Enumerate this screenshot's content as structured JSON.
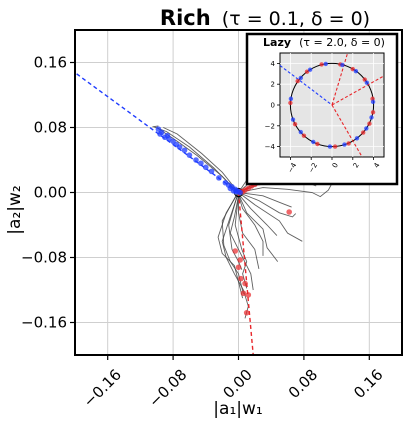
{
  "chart_data": [
    {
      "type": "scatter",
      "title_bold": "Rich",
      "title_params": "(τ = 0.1, δ = 0)",
      "xlabel": "|a₁|w₁",
      "ylabel": "|a₂|w₂",
      "xlim": [
        -0.2,
        0.2
      ],
      "ylim": [
        -0.2,
        0.2
      ],
      "xticks": [
        -0.16,
        -0.08,
        0.0,
        0.08,
        0.16
      ],
      "xtick_labels": [
        "−0.16",
        "−0.08",
        "0.00",
        "0.08",
        "0.16"
      ],
      "yticks": [
        0.16,
        0.08,
        0.0,
        -0.08,
        -0.16
      ],
      "ytick_labels": [
        "0.16",
        "0.08",
        "0.00",
        "−0.08",
        "−0.16"
      ],
      "grid": true,
      "colors": {
        "blue": "#1f3cff",
        "red": "#e8262a",
        "trajectory": "#444444"
      },
      "circle_radius": 0.005,
      "blue_points": [
        [
          -0.098,
          0.078
        ],
        [
          -0.094,
          0.074
        ],
        [
          -0.096,
          0.072
        ],
        [
          -0.09,
          0.068
        ],
        [
          -0.087,
          0.07
        ],
        [
          -0.085,
          0.066
        ],
        [
          -0.08,
          0.063
        ],
        [
          -0.076,
          0.059
        ],
        [
          -0.072,
          0.056
        ],
        [
          -0.066,
          0.052
        ],
        [
          -0.06,
          0.046
        ],
        [
          -0.052,
          0.04
        ],
        [
          -0.046,
          0.036
        ],
        [
          -0.04,
          0.031
        ],
        [
          -0.033,
          0.026
        ],
        [
          -0.024,
          0.018
        ],
        [
          -0.016,
          0.012
        ],
        [
          -0.012,
          0.009
        ],
        [
          -0.01,
          0.005
        ],
        [
          -0.008,
          0.007
        ],
        [
          -0.006,
          0.002
        ],
        [
          -0.004,
          0.004
        ],
        [
          -0.003,
          0.001
        ],
        [
          -0.002,
          0.002
        ],
        [
          0.0,
          0.001
        ],
        [
          0.002,
          0.0
        ]
      ],
      "red_points": [
        [
          0.002,
          0.001
        ],
        [
          0.005,
          0.001
        ],
        [
          0.008,
          0.003
        ],
        [
          0.012,
          0.005
        ],
        [
          0.016,
          0.008
        ],
        [
          0.02,
          0.01
        ],
        [
          0.025,
          0.012
        ],
        [
          0.03,
          0.015
        ],
        [
          0.034,
          0.017
        ],
        [
          0.04,
          0.02
        ],
        [
          0.044,
          0.022
        ],
        [
          0.05,
          0.024
        ],
        [
          0.062,
          0.026
        ],
        [
          0.076,
          0.026
        ],
        [
          0.062,
          -0.024
        ],
        [
          -0.004,
          -0.072
        ],
        [
          0.0,
          -0.092
        ],
        [
          0.003,
          -0.106
        ],
        [
          0.006,
          -0.124
        ],
        [
          0.01,
          -0.148
        ],
        [
          0.012,
          -0.126
        ],
        [
          0.008,
          -0.112
        ],
        [
          0.002,
          -0.083
        ]
      ],
      "blue_line": [
        [
          -0.198,
          0.146
        ],
        [
          0.0,
          0.0
        ]
      ],
      "red_lines": [
        [
          [
            0.0,
            0.0
          ],
          [
            0.06,
            0.03
          ],
          [
            0.12,
            0.062
          ]
        ],
        [
          [
            0.0,
            0.0
          ],
          [
            0.018,
            -0.2
          ]
        ]
      ],
      "trajectories": [
        [
          [
            -0.001,
            0.0
          ],
          [
            -0.02,
            0.02
          ],
          [
            -0.05,
            0.045
          ],
          [
            -0.075,
            0.063
          ],
          [
            -0.1,
            0.08
          ]
        ],
        [
          [
            0.0,
            -0.001
          ],
          [
            -0.03,
            0.03
          ],
          [
            -0.06,
            0.056
          ],
          [
            -0.088,
            0.075
          ],
          [
            -0.104,
            0.081
          ],
          [
            -0.098,
            0.082
          ]
        ],
        [
          [
            0.0,
            0.0
          ],
          [
            -0.02,
            0.025
          ],
          [
            -0.045,
            0.048
          ],
          [
            -0.075,
            0.072
          ],
          [
            -0.092,
            0.08
          ]
        ],
        [
          [
            0.0,
            0.0
          ],
          [
            0.02,
            0.03
          ],
          [
            0.035,
            0.045
          ],
          [
            0.055,
            0.052
          ],
          [
            0.07,
            0.048
          ],
          [
            0.095,
            0.043
          ]
        ],
        [
          [
            0.0,
            0.0
          ],
          [
            0.02,
            0.018
          ],
          [
            0.04,
            0.038
          ],
          [
            0.06,
            0.046
          ],
          [
            0.075,
            0.04
          ],
          [
            0.1,
            0.037
          ]
        ],
        [
          [
            0.0,
            0.0
          ],
          [
            0.03,
            0.016
          ],
          [
            0.05,
            0.03
          ],
          [
            0.075,
            0.03
          ],
          [
            0.1,
            0.028
          ],
          [
            0.12,
            0.028
          ]
        ],
        [
          [
            0.0,
            0.0
          ],
          [
            0.03,
            0.012
          ],
          [
            0.06,
            0.016
          ],
          [
            0.085,
            0.012
          ],
          [
            0.095,
            0.008
          ]
        ],
        [
          [
            0.0,
            0.0
          ],
          [
            0.03,
            0.006
          ],
          [
            0.06,
            0.004
          ],
          [
            0.09,
            0.0
          ],
          [
            0.1,
            -0.005
          ],
          [
            0.11,
            0.003
          ],
          [
            0.12,
            0.022
          ]
        ],
        [
          [
            0.0,
            0.0
          ],
          [
            0.03,
            -0.004
          ],
          [
            0.055,
            -0.014
          ],
          [
            0.065,
            -0.018
          ]
        ],
        [
          [
            0.0,
            0.0
          ],
          [
            0.025,
            -0.01
          ],
          [
            0.05,
            -0.025
          ],
          [
            0.066,
            -0.03
          ],
          [
            0.07,
            -0.026
          ]
        ],
        [
          [
            0.0,
            0.0
          ],
          [
            0.02,
            -0.015
          ],
          [
            0.05,
            -0.035
          ],
          [
            0.06,
            -0.05
          ],
          [
            0.078,
            -0.06
          ]
        ],
        [
          [
            0.0,
            -0.002
          ],
          [
            0.015,
            -0.02
          ],
          [
            0.035,
            -0.04
          ],
          [
            0.047,
            -0.053
          ]
        ],
        [
          [
            0.0,
            -0.002
          ],
          [
            0.01,
            -0.025
          ],
          [
            0.03,
            -0.045
          ],
          [
            0.035,
            -0.068
          ],
          [
            0.048,
            -0.085
          ]
        ],
        [
          [
            0.0,
            -0.003
          ],
          [
            0.005,
            -0.02
          ],
          [
            0.02,
            -0.04
          ],
          [
            0.03,
            -0.06
          ],
          [
            0.03,
            -0.078
          ]
        ],
        [
          [
            0.0,
            -0.004
          ],
          [
            0.0,
            -0.025
          ],
          [
            0.005,
            -0.05
          ],
          [
            0.02,
            -0.07
          ],
          [
            0.025,
            -0.094
          ]
        ],
        [
          [
            0.0,
            -0.004
          ],
          [
            -0.005,
            -0.03
          ],
          [
            -0.01,
            -0.05
          ],
          [
            0.0,
            -0.07
          ],
          [
            0.015,
            -0.1
          ],
          [
            0.018,
            -0.12
          ]
        ],
        [
          [
            -0.001,
            -0.003
          ],
          [
            -0.01,
            -0.03
          ],
          [
            -0.02,
            -0.06
          ],
          [
            -0.015,
            -0.08
          ],
          [
            -0.005,
            -0.1
          ],
          [
            0.006,
            -0.12
          ],
          [
            0.012,
            -0.14
          ],
          [
            0.008,
            -0.155
          ]
        ],
        [
          [
            -0.002,
            -0.003
          ],
          [
            -0.015,
            -0.025
          ],
          [
            -0.025,
            -0.055
          ],
          [
            -0.02,
            -0.075
          ],
          [
            -0.005,
            -0.09
          ],
          [
            0.0,
            -0.11
          ],
          [
            0.005,
            -0.13
          ]
        ],
        [
          [
            -0.002,
            -0.002
          ],
          [
            -0.02,
            -0.035
          ],
          [
            -0.018,
            -0.065
          ],
          [
            -0.01,
            -0.085
          ],
          [
            0.0,
            -0.1
          ],
          [
            0.006,
            -0.125
          ]
        ],
        [
          [
            -0.001,
            -0.002
          ],
          [
            -0.012,
            -0.04
          ],
          [
            -0.008,
            -0.07
          ],
          [
            0.0,
            -0.085
          ],
          [
            0.004,
            -0.095
          ]
        ],
        [
          [
            0.0,
            -0.003
          ],
          [
            -0.004,
            -0.04
          ],
          [
            0.004,
            -0.07
          ],
          [
            0.01,
            -0.085
          ],
          [
            0.005,
            -0.1
          ],
          [
            0.01,
            -0.118
          ]
        ]
      ]
    },
    {
      "type": "scatter",
      "title_bold": "Lazy",
      "title_params": "(τ = 2.0, δ = 0)",
      "xlim": [
        -5,
        5
      ],
      "ylim": [
        -5,
        5
      ],
      "xticks": [
        -4,
        -2,
        0,
        2,
        4
      ],
      "yticks": [
        4,
        2,
        0,
        -2,
        -4
      ],
      "ytick_labels": [
        "4",
        "2",
        "0",
        "−2",
        "−4"
      ],
      "xtick_labels": [
        "−4",
        "−2",
        "0",
        "2",
        "4"
      ],
      "circle_radius": 4.0,
      "background": "#e5e5e5",
      "blue_line": [
        [
          -5,
          3.8
        ],
        [
          0,
          0
        ]
      ],
      "red_lines": [
        [
          [
            0,
            0
          ],
          [
            5,
            2.8
          ]
        ],
        [
          [
            0,
            0
          ],
          [
            2.9,
            -5
          ]
        ],
        [
          [
            0,
            0
          ],
          [
            1.5,
            5
          ]
        ]
      ],
      "red_points": [
        [
          -2.4,
          3.2
        ],
        [
          -1.0,
          3.9
        ],
        [
          0.8,
          3.9
        ],
        [
          2.0,
          3.45
        ],
        [
          3.15,
          2.45
        ],
        [
          3.9,
          0.6
        ],
        [
          3.95,
          -0.7
        ],
        [
          3.6,
          -1.8
        ],
        [
          3.0,
          -2.65
        ],
        [
          1.6,
          -3.7
        ],
        [
          0.3,
          -4.0
        ],
        [
          -1.4,
          -3.75
        ],
        [
          -2.7,
          -2.95
        ],
        [
          -3.55,
          -1.85
        ],
        [
          -4.0,
          0.2
        ],
        [
          -3.3,
          2.3
        ]
      ],
      "blue_points": [
        [
          -2.1,
          3.4
        ],
        [
          -0.6,
          3.95
        ],
        [
          1.0,
          3.85
        ],
        [
          2.3,
          3.25
        ],
        [
          3.35,
          2.15
        ],
        [
          3.95,
          0.3
        ],
        [
          3.8,
          -1.2
        ],
        [
          3.3,
          -2.25
        ],
        [
          2.4,
          -3.2
        ],
        [
          1.2,
          -3.8
        ],
        [
          -0.2,
          -4.0
        ],
        [
          -1.8,
          -3.55
        ],
        [
          -3.0,
          -2.6
        ],
        [
          -3.75,
          -1.4
        ],
        [
          -3.95,
          0.6
        ],
        [
          -3.0,
          2.6
        ]
      ]
    }
  ]
}
